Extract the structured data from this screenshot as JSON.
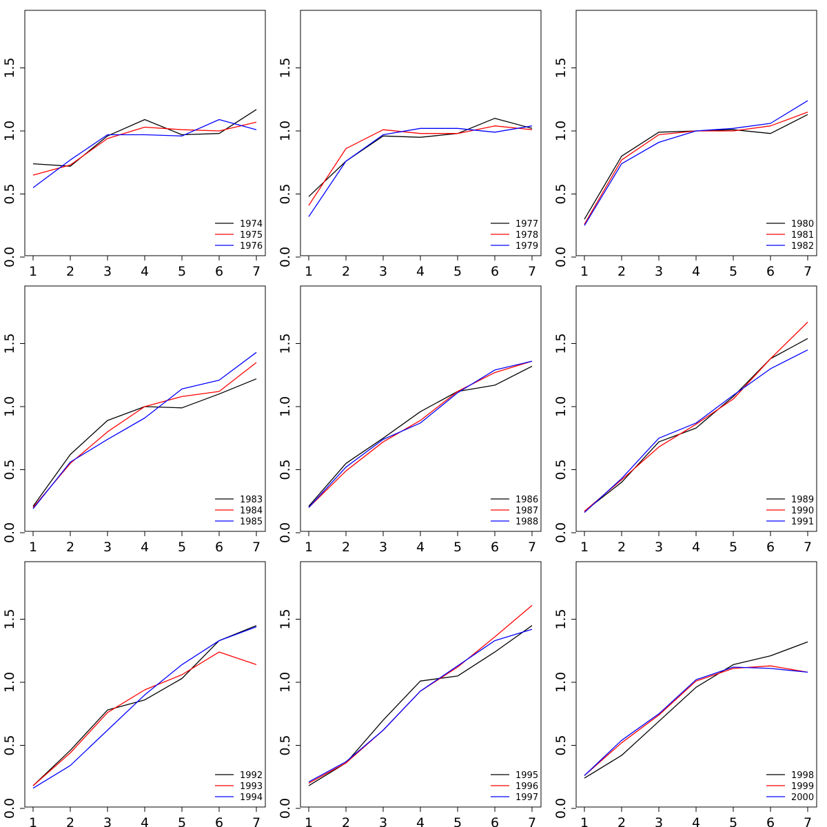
{
  "chart_data": [
    {
      "type": "line",
      "x": [
        1,
        2,
        3,
        4,
        5,
        6,
        7
      ],
      "ylim": [
        0,
        1.8
      ],
      "yticks": [
        "0.0",
        "0.5",
        "1.0",
        "1.5"
      ],
      "xticks": [
        "1",
        "2",
        "3",
        "4",
        "5",
        "6",
        "7"
      ],
      "legend_position": "bottom-right",
      "series": [
        {
          "name": "1974",
          "color": "#000000",
          "values": [
            0.74,
            0.72,
            0.96,
            1.09,
            0.97,
            0.98,
            1.17
          ]
        },
        {
          "name": "1975",
          "color": "#ff0000",
          "values": [
            0.65,
            0.73,
            0.94,
            1.03,
            1.01,
            1.0,
            1.07
          ]
        },
        {
          "name": "1976",
          "color": "#0000ff",
          "values": [
            0.55,
            0.77,
            0.97,
            0.97,
            0.96,
            1.09,
            1.01
          ]
        }
      ]
    },
    {
      "type": "line",
      "x": [
        1,
        2,
        3,
        4,
        5,
        6,
        7
      ],
      "ylim": [
        0,
        1.8
      ],
      "yticks": [
        "0.0",
        "0.5",
        "1.0",
        "1.5"
      ],
      "xticks": [
        "1",
        "2",
        "3",
        "4",
        "5",
        "6",
        "7"
      ],
      "legend_position": "bottom-right",
      "series": [
        {
          "name": "1977",
          "color": "#000000",
          "values": [
            0.48,
            0.76,
            0.96,
            0.95,
            0.98,
            1.1,
            1.02
          ]
        },
        {
          "name": "1978",
          "color": "#ff0000",
          "values": [
            0.41,
            0.86,
            1.01,
            0.98,
            0.98,
            1.04,
            1.01
          ]
        },
        {
          "name": "1979",
          "color": "#0000ff",
          "values": [
            0.32,
            0.76,
            0.97,
            1.02,
            1.02,
            0.99,
            1.04
          ]
        }
      ]
    },
    {
      "type": "line",
      "x": [
        1,
        2,
        3,
        4,
        5,
        6,
        7
      ],
      "ylim": [
        0,
        1.8
      ],
      "yticks": [
        "0.0",
        "0.5",
        "1.0",
        "1.5"
      ],
      "xticks": [
        "1",
        "2",
        "3",
        "4",
        "5",
        "6",
        "7"
      ],
      "legend_position": "bottom-right",
      "series": [
        {
          "name": "1980",
          "color": "#000000",
          "values": [
            0.3,
            0.8,
            0.99,
            1.0,
            1.01,
            0.98,
            1.13
          ]
        },
        {
          "name": "1981",
          "color": "#ff0000",
          "values": [
            0.26,
            0.77,
            0.97,
            1.0,
            1.0,
            1.04,
            1.15
          ]
        },
        {
          "name": "1982",
          "color": "#0000ff",
          "values": [
            0.25,
            0.74,
            0.91,
            1.0,
            1.02,
            1.06,
            1.24
          ]
        }
      ]
    },
    {
      "type": "line",
      "x": [
        1,
        2,
        3,
        4,
        5,
        6,
        7
      ],
      "ylim": [
        0,
        1.8
      ],
      "yticks": [
        "0.0",
        "0.5",
        "1.0",
        "1.5"
      ],
      "xticks": [
        "1",
        "2",
        "3",
        "4",
        "5",
        "6",
        "7"
      ],
      "legend_position": "bottom-right",
      "series": [
        {
          "name": "1983",
          "color": "#000000",
          "values": [
            0.21,
            0.62,
            0.89,
            1.0,
            0.99,
            1.1,
            1.22
          ]
        },
        {
          "name": "1984",
          "color": "#ff0000",
          "values": [
            0.2,
            0.55,
            0.8,
            1.0,
            1.08,
            1.12,
            1.35
          ]
        },
        {
          "name": "1985",
          "color": "#0000ff",
          "values": [
            0.19,
            0.56,
            0.74,
            0.91,
            1.14,
            1.21,
            1.43
          ]
        }
      ]
    },
    {
      "type": "line",
      "x": [
        1,
        2,
        3,
        4,
        5,
        6,
        7
      ],
      "ylim": [
        0,
        1.8
      ],
      "yticks": [
        "0.0",
        "0.5",
        "1.0",
        "1.5"
      ],
      "xticks": [
        "1",
        "2",
        "3",
        "4",
        "5",
        "6",
        "7"
      ],
      "legend_position": "bottom-right",
      "series": [
        {
          "name": "1986",
          "color": "#000000",
          "values": [
            0.21,
            0.55,
            0.75,
            0.96,
            1.12,
            1.17,
            1.32
          ]
        },
        {
          "name": "1987",
          "color": "#ff0000",
          "values": [
            0.2,
            0.49,
            0.72,
            0.89,
            1.12,
            1.27,
            1.36
          ]
        },
        {
          "name": "1988",
          "color": "#0000ff",
          "values": [
            0.2,
            0.52,
            0.74,
            0.87,
            1.11,
            1.29,
            1.36
          ]
        }
      ]
    },
    {
      "type": "line",
      "x": [
        1,
        2,
        3,
        4,
        5,
        6,
        7
      ],
      "ylim": [
        0,
        1.8
      ],
      "yticks": [
        "0.0",
        "0.5",
        "1.0",
        "1.5"
      ],
      "xticks": [
        "1",
        "2",
        "3",
        "4",
        "5",
        "6",
        "7"
      ],
      "legend_position": "bottom-right",
      "series": [
        {
          "name": "1989",
          "color": "#000000",
          "values": [
            0.17,
            0.4,
            0.72,
            0.83,
            1.08,
            1.38,
            1.54
          ]
        },
        {
          "name": "1990",
          "color": "#ff0000",
          "values": [
            0.17,
            0.42,
            0.68,
            0.86,
            1.06,
            1.38,
            1.67
          ]
        },
        {
          "name": "1991",
          "color": "#0000ff",
          "values": [
            0.16,
            0.43,
            0.75,
            0.87,
            1.09,
            1.3,
            1.45
          ]
        }
      ]
    },
    {
      "type": "line",
      "x": [
        1,
        2,
        3,
        4,
        5,
        6,
        7
      ],
      "ylim": [
        0,
        1.8
      ],
      "yticks": [
        "0.0",
        "0.5",
        "1.0",
        "1.5"
      ],
      "xticks": [
        "1",
        "2",
        "3",
        "4",
        "5",
        "6",
        "7"
      ],
      "legend_position": "bottom-right",
      "series": [
        {
          "name": "1992",
          "color": "#000000",
          "values": [
            0.18,
            0.46,
            0.78,
            0.86,
            1.03,
            1.33,
            1.45
          ]
        },
        {
          "name": "1993",
          "color": "#ff0000",
          "values": [
            0.18,
            0.44,
            0.76,
            0.94,
            1.06,
            1.24,
            1.14
          ]
        },
        {
          "name": "1994",
          "color": "#0000ff",
          "values": [
            0.16,
            0.34,
            0.62,
            0.9,
            1.14,
            1.33,
            1.44
          ]
        }
      ]
    },
    {
      "type": "line",
      "x": [
        1,
        2,
        3,
        4,
        5,
        6,
        7
      ],
      "ylim": [
        0,
        1.8
      ],
      "yticks": [
        "0.0",
        "0.5",
        "1.0",
        "1.5"
      ],
      "xticks": [
        "1",
        "2",
        "3",
        "4",
        "5",
        "6",
        "7"
      ],
      "legend_position": "bottom-right",
      "series": [
        {
          "name": "1995",
          "color": "#000000",
          "values": [
            0.18,
            0.36,
            0.7,
            1.01,
            1.05,
            1.24,
            1.45
          ]
        },
        {
          "name": "1996",
          "color": "#ff0000",
          "values": [
            0.2,
            0.36,
            0.62,
            0.93,
            1.12,
            1.36,
            1.61
          ]
        },
        {
          "name": "1997",
          "color": "#0000ff",
          "values": [
            0.21,
            0.37,
            0.62,
            0.93,
            1.13,
            1.33,
            1.42
          ]
        }
      ]
    },
    {
      "type": "line",
      "x": [
        1,
        2,
        3,
        4,
        5,
        6,
        7
      ],
      "ylim": [
        0,
        1.8
      ],
      "yticks": [
        "0.0",
        "0.5",
        "1.0",
        "1.5"
      ],
      "xticks": [
        "1",
        "2",
        "3",
        "4",
        "5",
        "6",
        "7"
      ],
      "legend_position": "bottom-right",
      "series": [
        {
          "name": "1998",
          "color": "#000000",
          "values": [
            0.24,
            0.42,
            0.69,
            0.96,
            1.14,
            1.21,
            1.32
          ]
        },
        {
          "name": "1999",
          "color": "#ff0000",
          "values": [
            0.26,
            0.52,
            0.74,
            1.01,
            1.11,
            1.13,
            1.08
          ]
        },
        {
          "name": "2000",
          "color": "#0000ff",
          "values": [
            0.26,
            0.54,
            0.75,
            1.02,
            1.12,
            1.11,
            1.08
          ]
        }
      ]
    }
  ]
}
